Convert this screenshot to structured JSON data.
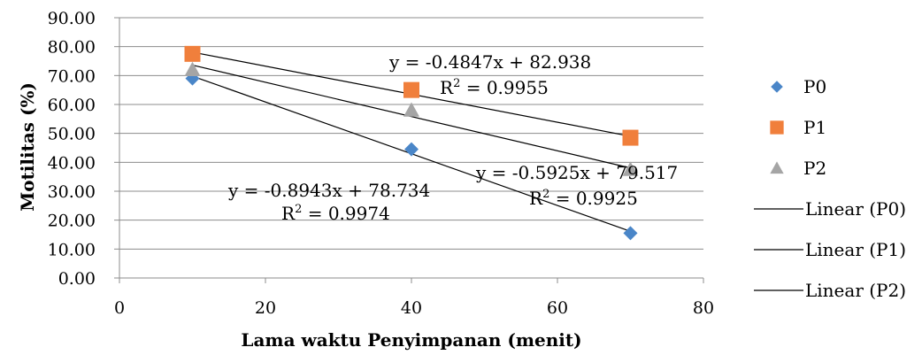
{
  "chart_data": {
    "type": "scatter",
    "xlabel": "Lama waktu Penyimpanan (menit)",
    "ylabel": "Motilitas (%)",
    "xlim": [
      0,
      80
    ],
    "ylim": [
      0,
      90
    ],
    "x_ticks": [
      "0",
      "20",
      "40",
      "60",
      "80"
    ],
    "y_ticks": [
      "0.00",
      "10.00",
      "20.00",
      "30.00",
      "40.00",
      "50.00",
      "60.00",
      "70.00",
      "80.00",
      "90.00"
    ],
    "grid": "horizontal",
    "legend_position": "right",
    "series": [
      {
        "name": "P0",
        "marker": "diamond",
        "color": "#4a86c8",
        "x": [
          10,
          40,
          70
        ],
        "y": [
          69.0,
          44.5,
          15.5
        ]
      },
      {
        "name": "P1",
        "marker": "square",
        "color": "#f07f3c",
        "x": [
          10,
          40,
          70
        ],
        "y": [
          77.5,
          65.0,
          48.5
        ]
      },
      {
        "name": "P2",
        "marker": "triangle",
        "color": "#a5a5a5",
        "x": [
          10,
          40,
          70
        ],
        "y": [
          72.0,
          58.0,
          37.5
        ]
      }
    ],
    "trendlines": [
      {
        "name": "Linear (P0)",
        "slope": -0.8943,
        "intercept": 78.734,
        "x_range": [
          10,
          70
        ],
        "equation": "y = -0.8943x + 78.734",
        "r2": "0.9974"
      },
      {
        "name": "Linear (P1)",
        "slope": -0.4847,
        "intercept": 82.938,
        "x_range": [
          10,
          70
        ],
        "equation": "y = -0.4847x + 82.938",
        "r2": "0.9955"
      },
      {
        "name": "Linear (P2)",
        "slope": -0.5925,
        "intercept": 79.517,
        "x_range": [
          10,
          70
        ],
        "equation": "y = -0.5925x + 79.517",
        "r2": "0.9925"
      }
    ],
    "r2_prefix": "R"
  }
}
